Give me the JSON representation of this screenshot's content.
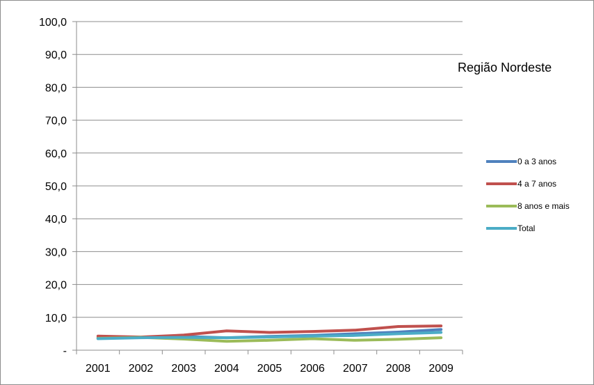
{
  "chart_data": {
    "type": "line",
    "annotation": "Região Nordeste",
    "categories": [
      "2001",
      "2002",
      "2003",
      "2004",
      "2005",
      "2006",
      "2007",
      "2008",
      "2009"
    ],
    "ylim": [
      0,
      100
    ],
    "y_ticks": [
      0,
      10,
      20,
      30,
      40,
      50,
      60,
      70,
      80,
      90,
      100
    ],
    "y_tick_labels": [
      "-",
      "10,0",
      "20,0",
      "30,0",
      "40,0",
      "50,0",
      "60,0",
      "70,0",
      "80,0",
      "90,0",
      "100,0"
    ],
    "grid": "horizontal",
    "legend_position": "right",
    "series": [
      {
        "name": "0 a 3 anos",
        "color": "#4f81bd",
        "values": [
          3.8,
          3.9,
          4.2,
          3.8,
          4.2,
          4.5,
          5.0,
          5.5,
          6.3
        ]
      },
      {
        "name": "4 a 7 anos",
        "color": "#c0504d",
        "values": [
          4.3,
          4.0,
          4.6,
          5.9,
          5.4,
          5.7,
          6.1,
          7.2,
          7.4
        ]
      },
      {
        "name": "8 anos e mais",
        "color": "#9bbb59",
        "values": [
          3.6,
          3.9,
          3.4,
          2.7,
          3.0,
          3.5,
          3.0,
          3.3,
          3.8
        ]
      },
      {
        "name": "Total",
        "color": "#4bacc6",
        "values": [
          3.5,
          3.8,
          3.9,
          3.8,
          4.0,
          4.3,
          4.5,
          5.0,
          5.4
        ]
      }
    ]
  }
}
